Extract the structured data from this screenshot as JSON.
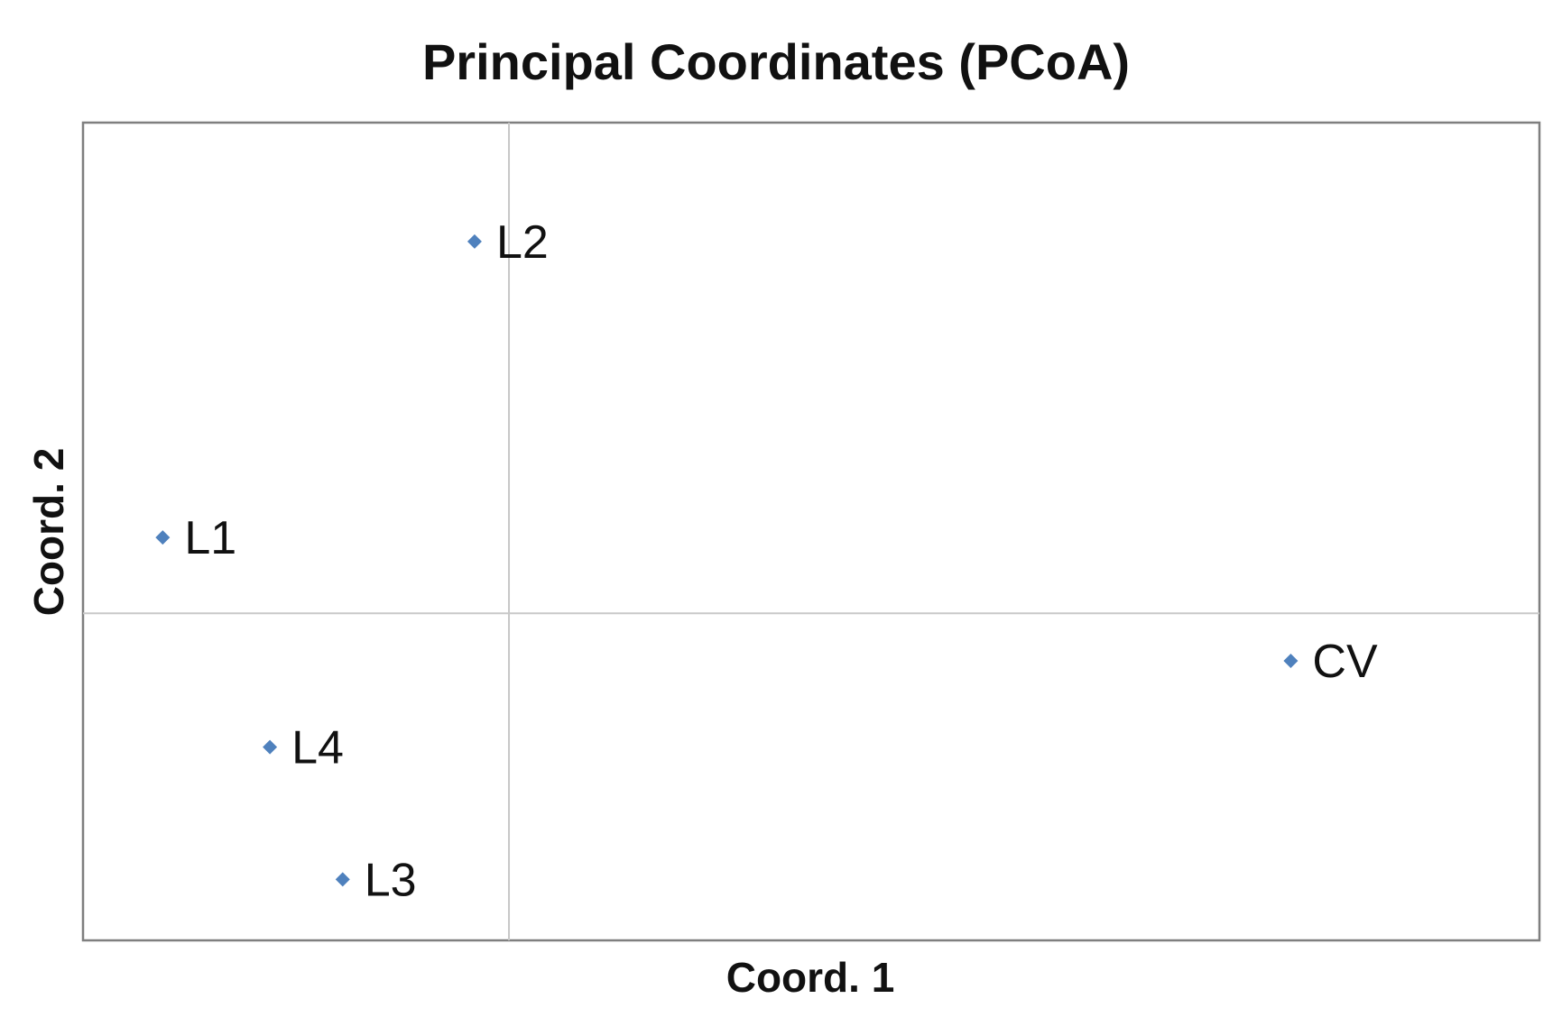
{
  "chart_data": {
    "type": "scatter",
    "title": "Principal Coordinates (PCoA)",
    "xlabel": "Coord. 1",
    "ylabel": "Coord. 2",
    "xlim": [
      -0.31,
      0.75
    ],
    "ylim": [
      -0.22,
      0.33
    ],
    "zero_lines": true,
    "grid": false,
    "legend": "none",
    "marker": "diamond",
    "marker_color": "#4f81bd",
    "points": [
      {
        "label": "L2",
        "x": -0.025,
        "y": 0.25
      },
      {
        "label": "L1",
        "x": -0.252,
        "y": 0.051
      },
      {
        "label": "CV",
        "x": 0.569,
        "y": -0.032
      },
      {
        "label": "L4",
        "x": -0.174,
        "y": -0.09
      },
      {
        "label": "L3",
        "x": -0.121,
        "y": -0.179
      }
    ]
  }
}
